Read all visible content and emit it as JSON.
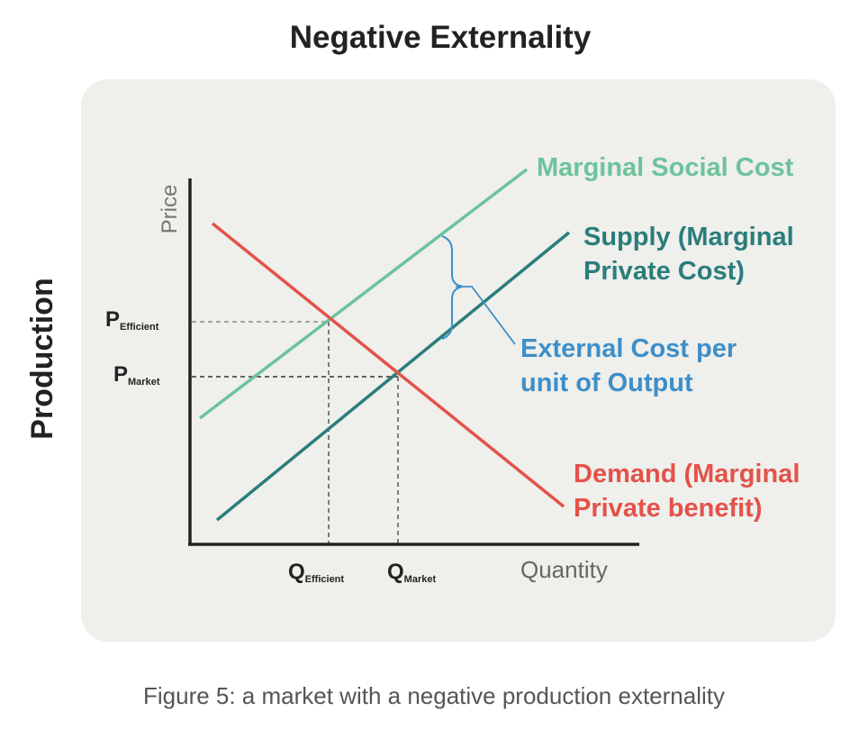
{
  "title": "Negative Externality",
  "side_label": "Production",
  "caption": "Figure 5: a market with a negative production externality",
  "diagram": {
    "axes": {
      "y_label": "Price",
      "x_label": "Quantity"
    },
    "curves": {
      "msc": {
        "label": "Marginal Social Cost",
        "color": "#6cc39c"
      },
      "supply": {
        "label_line1": "Supply (Marginal",
        "label_line2": "Private Cost)",
        "color": "#2a7d7b"
      },
      "demand": {
        "label_line1": "Demand (Marginal",
        "label_line2": "Private benefit)",
        "color": "#e3524a"
      }
    },
    "external_cost": {
      "label_line1": "External Cost per",
      "label_line2": "unit of Output",
      "color": "#3d8fc9"
    },
    "prices": {
      "efficient": {
        "main": "P",
        "sub": "Efficient"
      },
      "market": {
        "main": "P",
        "sub": "Market"
      }
    },
    "quantities": {
      "efficient": {
        "main": "Q",
        "sub": "Efficient"
      },
      "market": {
        "main": "Q",
        "sub": "Market"
      }
    }
  }
}
